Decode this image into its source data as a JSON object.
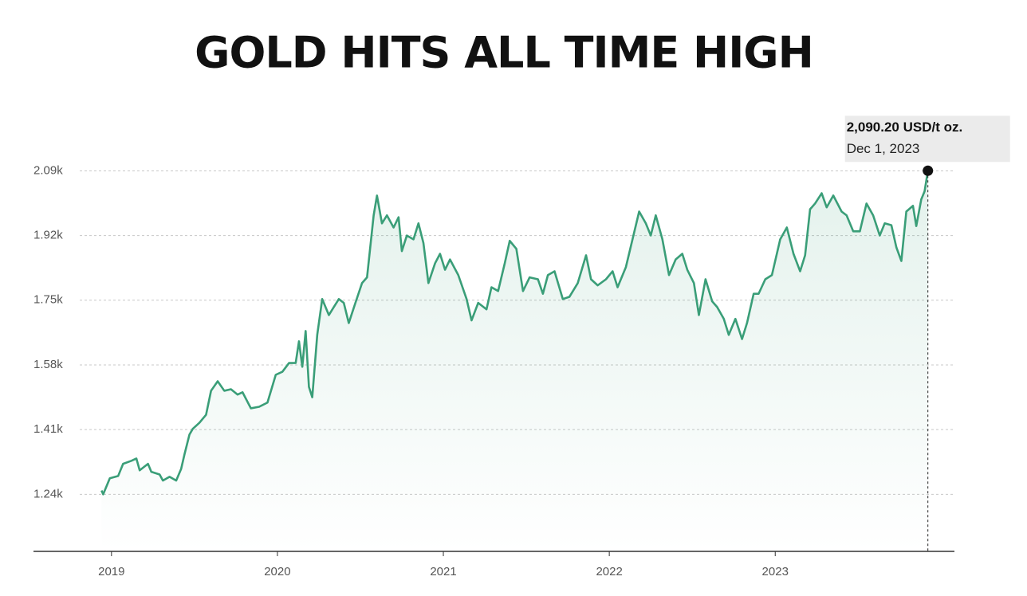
{
  "chart_data": {
    "type": "line",
    "title": "GOLD HITS ALL TIME HIGH",
    "annotation": {
      "text": "2,090.20 USD/t oz.",
      "date": "Dec 1, 2023"
    },
    "xlim": [
      2018.53,
      2024.08
    ],
    "xticks": [
      2019,
      2020,
      2021,
      2022,
      2023
    ],
    "ylim": [
      1090,
      2230
    ],
    "yticks": [
      {
        "value": 1240,
        "label": "1.24k"
      },
      {
        "value": 1410,
        "label": "1.41k"
      },
      {
        "value": 1580,
        "label": "1.58k"
      },
      {
        "value": 1750,
        "label": "1.75k"
      },
      {
        "value": 1920,
        "label": "1.92k"
      },
      {
        "value": 2090,
        "label": "2.09k"
      }
    ],
    "grid": true,
    "series": [
      {
        "name": "Gold",
        "color": "#3a9e78",
        "x": [
          2018.94,
          2018.95,
          2018.99,
          2019.04,
          2019.07,
          2019.12,
          2019.15,
          2019.17,
          2019.22,
          2019.24,
          2019.29,
          2019.31,
          2019.35,
          2019.39,
          2019.42,
          2019.44,
          2019.47,
          2019.49,
          2019.53,
          2019.57,
          2019.6,
          2019.64,
          2019.68,
          2019.72,
          2019.76,
          2019.79,
          2019.84,
          2019.89,
          2019.94,
          2019.99,
          2020.03,
          2020.07,
          2020.11,
          2020.13,
          2020.15,
          2020.17,
          2020.19,
          2020.21,
          2020.24,
          2020.27,
          2020.31,
          2020.34,
          2020.37,
          2020.4,
          2020.43,
          2020.47,
          2020.51,
          2020.54,
          2020.58,
          2020.6,
          2020.63,
          2020.66,
          2020.7,
          2020.73,
          2020.75,
          2020.78,
          2020.82,
          2020.85,
          2020.88,
          2020.91,
          2020.95,
          2020.98,
          2021.01,
          2021.04,
          2021.09,
          2021.14,
          2021.17,
          2021.21,
          2021.26,
          2021.29,
          2021.33,
          2021.37,
          2021.4,
          2021.44,
          2021.48,
          2021.52,
          2021.57,
          2021.6,
          2021.63,
          2021.67,
          2021.72,
          2021.76,
          2021.81,
          2021.86,
          2021.89,
          2021.93,
          2021.98,
          2022.02,
          2022.05,
          2022.1,
          2022.14,
          2022.18,
          2022.22,
          2022.25,
          2022.28,
          2022.32,
          2022.36,
          2022.4,
          2022.44,
          2022.47,
          2022.51,
          2022.54,
          2022.58,
          2022.62,
          2022.65,
          2022.69,
          2022.72,
          2022.76,
          2022.8,
          2022.83,
          2022.87,
          2022.9,
          2022.94,
          2022.98,
          2023.03,
          2023.07,
          2023.11,
          2023.15,
          2023.18,
          2023.21,
          2023.24,
          2023.28,
          2023.31,
          2023.35,
          2023.4,
          2023.43,
          2023.47,
          2023.51,
          2023.55,
          2023.59,
          2023.63,
          2023.66,
          2023.7,
          2023.73,
          2023.76,
          2023.79,
          2023.83,
          2023.85,
          2023.88,
          2023.9,
          2023.92
        ],
        "values": [
          1250,
          1240,
          1282,
          1288,
          1320,
          1328,
          1334,
          1303,
          1320,
          1299,
          1292,
          1276,
          1286,
          1276,
          1307,
          1345,
          1397,
          1412,
          1428,
          1449,
          1512,
          1537,
          1512,
          1516,
          1502,
          1508,
          1466,
          1470,
          1481,
          1554,
          1562,
          1585,
          1585,
          1642,
          1575,
          1669,
          1522,
          1495,
          1659,
          1753,
          1711,
          1732,
          1753,
          1743,
          1690,
          1743,
          1795,
          1810,
          1973,
          2025,
          1952,
          1973,
          1941,
          1968,
          1879,
          1920,
          1910,
          1952,
          1900,
          1795,
          1847,
          1872,
          1830,
          1857,
          1816,
          1753,
          1697,
          1743,
          1726,
          1784,
          1774,
          1847,
          1906,
          1885,
          1774,
          1810,
          1805,
          1767,
          1816,
          1826,
          1753,
          1759,
          1795,
          1868,
          1805,
          1789,
          1805,
          1826,
          1784,
          1837,
          1910,
          1983,
          1952,
          1920,
          1973,
          1910,
          1816,
          1857,
          1872,
          1830,
          1795,
          1711,
          1805,
          1747,
          1732,
          1701,
          1659,
          1701,
          1648,
          1690,
          1767,
          1767,
          1805,
          1816,
          1910,
          1941,
          1872,
          1826,
          1868,
          1989,
          2004,
          2031,
          1994,
          2025,
          1983,
          1973,
          1931,
          1931,
          2004,
          1973,
          1920,
          1952,
          1947,
          1889,
          1853,
          1983,
          1998,
          1945,
          2015,
          2036,
          2090.2
        ]
      }
    ]
  }
}
